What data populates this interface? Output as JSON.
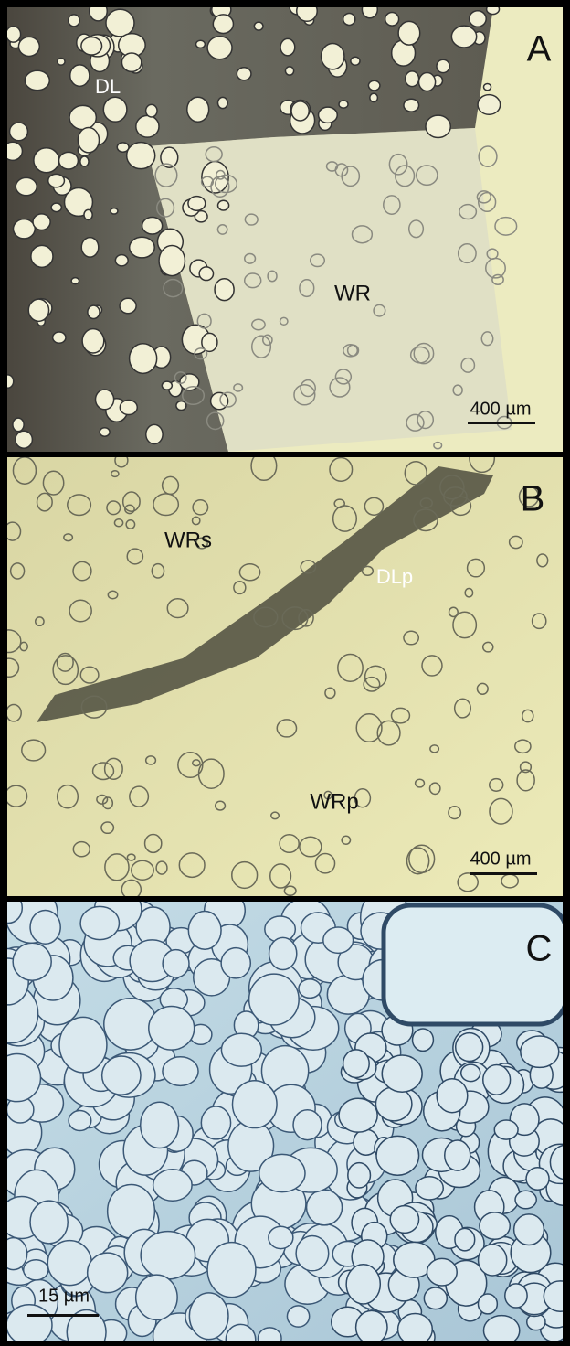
{
  "panels": [
    {
      "label": "A",
      "annotations": [
        "DL",
        "WR"
      ],
      "scale_bar": "400 µm"
    },
    {
      "label": "B",
      "annotations": [
        "WRs",
        "DLp",
        "WRp"
      ],
      "scale_bar": "400 µm"
    },
    {
      "label": "C",
      "annotations": [],
      "scale_bar": "15 µm"
    }
  ]
}
